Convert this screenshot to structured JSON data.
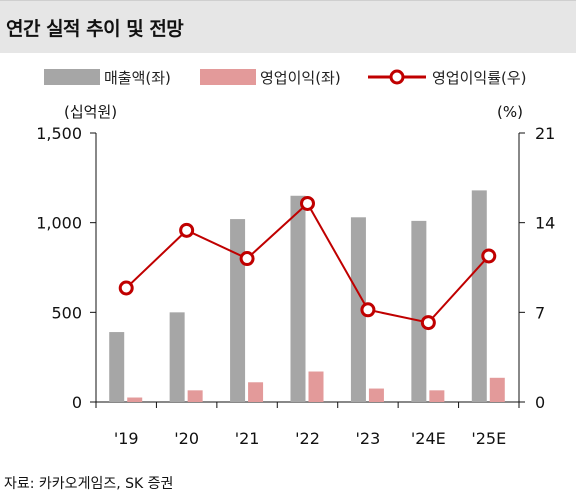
{
  "title": "연간 실적 추이 및 전망",
  "legend": {
    "revenue": "매출액(좌)",
    "op_income": "영업이익(좌)",
    "op_margin": "영업이익률(우)"
  },
  "left_unit": "(십억원)",
  "right_unit": "(%)",
  "source": "자료: 카카오게임즈, SK 증권",
  "colors": {
    "revenue": "#a6a6a6",
    "op_income": "#e39a9a",
    "op_margin": "#c00000"
  },
  "chart_data": {
    "type": "bar",
    "categories": [
      "'19",
      "'20",
      "'21",
      "'22",
      "'23",
      "'24E",
      "'25E"
    ],
    "series": [
      {
        "name": "매출액(좌)",
        "axis": "left",
        "type": "bar",
        "values": [
          390,
          500,
          1020,
          1150,
          1030,
          1010,
          1180
        ]
      },
      {
        "name": "영업이익(좌)",
        "axis": "left",
        "type": "bar",
        "values": [
          25,
          65,
          110,
          170,
          75,
          65,
          135
        ]
      },
      {
        "name": "영업이익률(우)",
        "axis": "right",
        "type": "line",
        "values": [
          8.9,
          13.4,
          11.2,
          15.5,
          7.2,
          6.2,
          11.4
        ]
      }
    ],
    "y_left": {
      "range": [
        0,
        1500
      ],
      "ticks": [
        "0",
        "500",
        "1,000",
        "1,500"
      ]
    },
    "y_right": {
      "range": [
        0,
        21
      ],
      "ticks": [
        "0",
        "7",
        "14",
        "21"
      ]
    },
    "grid": false,
    "legend_position": "top"
  }
}
